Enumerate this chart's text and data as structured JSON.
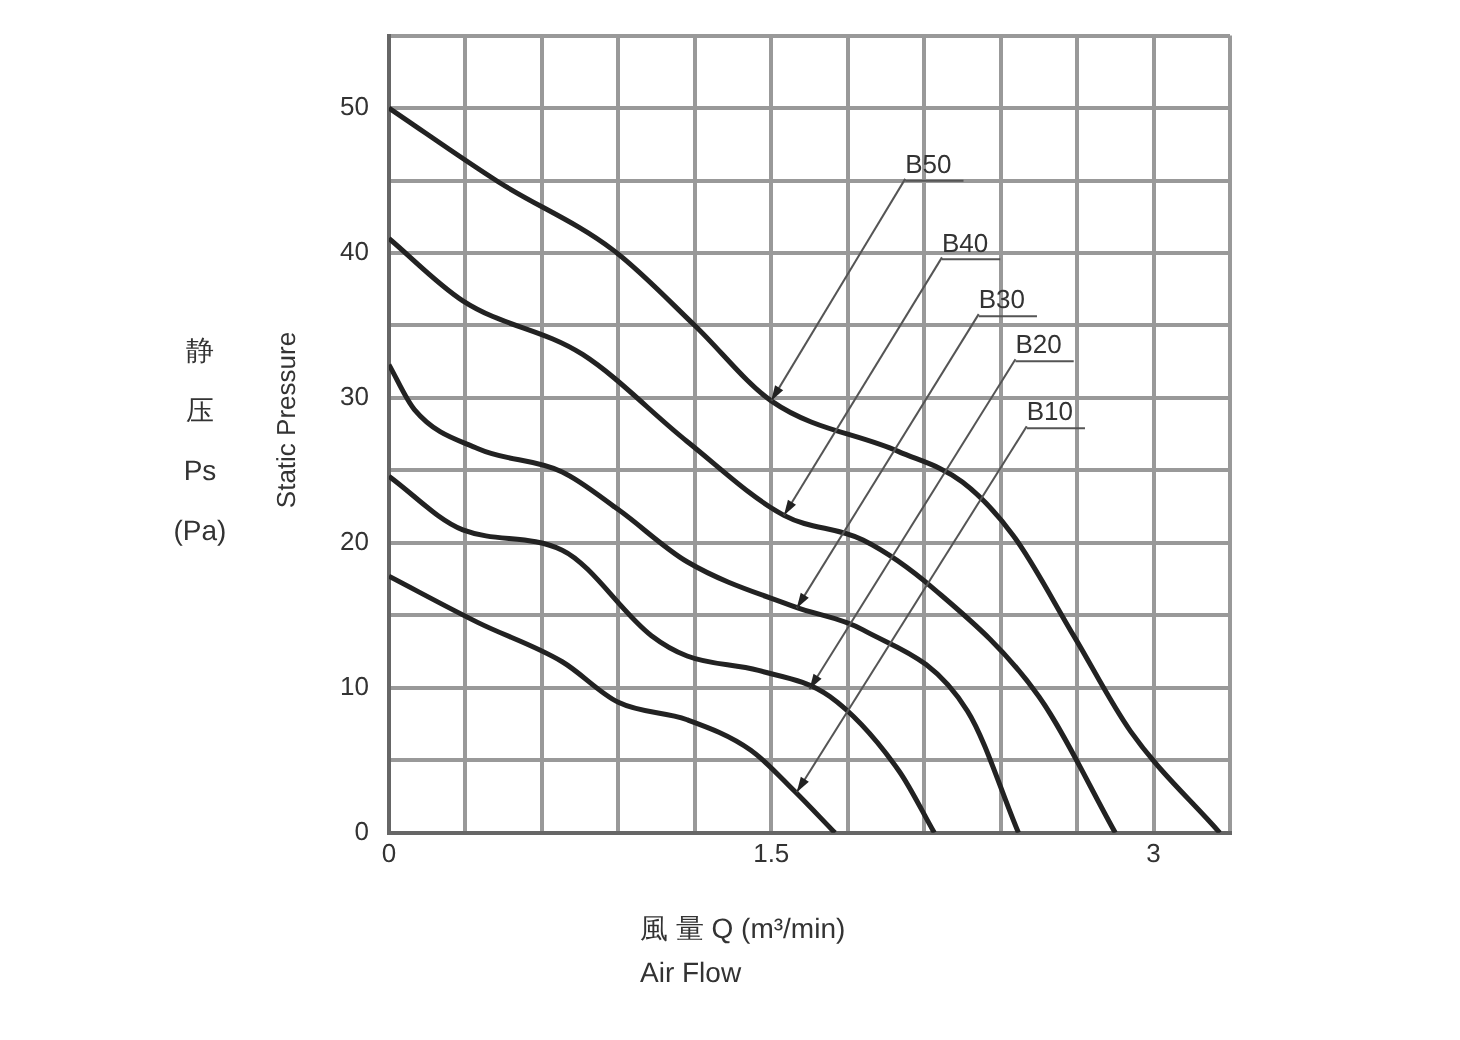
{
  "chart_data": {
    "type": "line",
    "xlabel": "風 量 Q (m³/min)",
    "ylabel": "静压 Ps (Pa)",
    "xlim": [
      0,
      3.3
    ],
    "ylim": [
      0,
      55
    ],
    "xticks": [
      0,
      {
        "value": 0.3,
        "label": null
      },
      {
        "value": 0.6,
        "label": null
      },
      {
        "value": 0.9,
        "label": null
      },
      {
        "value": 1.2,
        "label": null
      },
      1.5,
      {
        "value": 1.8,
        "label": null
      },
      {
        "value": 2.1,
        "label": null
      },
      {
        "value": 2.4,
        "label": null
      },
      {
        "value": 2.7,
        "label": null
      },
      3,
      {
        "value": 3.3,
        "label": null
      }
    ],
    "yticks": [
      0,
      {
        "value": 5,
        "label": null
      },
      10,
      {
        "value": 15,
        "label": null
      },
      20,
      {
        "value": 25,
        "label": null
      },
      30,
      {
        "value": 35,
        "label": null
      },
      40,
      {
        "value": 45,
        "label": null
      },
      50,
      {
        "value": 55,
        "label": null
      }
    ],
    "grid": true,
    "marker": "none",
    "line_style": "solid",
    "series": [
      {
        "color": "#222222",
        "x": [
          0,
          0.43,
          0.88,
          1.2,
          1.5,
          2.0,
          2.25,
          2.45,
          2.69,
          2.91,
          3.26
        ],
        "values": [
          50,
          44.9,
          40.2,
          35,
          29.8,
          26.3,
          24.2,
          20.5,
          13.5,
          7,
          0
        ]
      },
      {
        "color": "#222222",
        "x": [
          0,
          0.29,
          0.76,
          1.17,
          1.55,
          1.86,
          2.14,
          2.55,
          2.85
        ],
        "values": [
          41,
          36.7,
          33,
          27,
          21.9,
          20.2,
          16.8,
          9.4,
          0
        ]
      },
      {
        "color": "#222222",
        "x": [
          0,
          0.1,
          0.35,
          0.68,
          0.9,
          1.17,
          1.59,
          1.86,
          2.27,
          2.47
        ],
        "values": [
          32.3,
          29.2,
          26.5,
          24.9,
          22.3,
          18.7,
          15.6,
          14,
          8.4,
          0
        ]
      },
      {
        "color": "#222222",
        "x": [
          0,
          0.29,
          0.68,
          1.03,
          1.17,
          1.45,
          1.73,
          2.0,
          2.14
        ],
        "values": [
          24.6,
          20.9,
          19.5,
          13.6,
          12.2,
          11.2,
          9.4,
          4.3,
          0
        ]
      },
      {
        "color": "#222222",
        "x": [
          0,
          0.35,
          0.68,
          0.9,
          1.17,
          1.42,
          1.59,
          1.75
        ],
        "values": [
          17.7,
          14.5,
          11.8,
          9,
          7.8,
          5.7,
          2.9,
          0
        ]
      }
    ],
    "annotations": [
      "Air Flow",
      "Static Pressure",
      {
        "text": "B50",
        "x": 1.5,
        "y": 29.8
      },
      {
        "text": "B40",
        "x": 1.55,
        "y": 21.9
      },
      {
        "text": "B30",
        "x": 1.6,
        "y": 15.5
      },
      {
        "text": "B20",
        "x": 1.65,
        "y": 9.9
      },
      {
        "text": "B10",
        "x": 1.6,
        "y": 2.8
      }
    ]
  }
}
